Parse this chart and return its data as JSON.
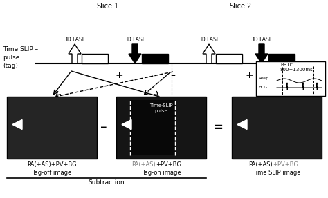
{
  "slice1_label": "Slice·1",
  "slice2_label": "Slice·2",
  "timeslip_label": "Time·SLIP –\npulse\n(tag)",
  "bbti_label": "BBTI:\n800~1300ms",
  "resp_label": "Resp",
  "ecg_label": "ECG",
  "fase_label": "3D·FASE",
  "image1_label1_black": "PA(+AS)+PV+BG",
  "image1_label2": "Tag-off image",
  "image2_label1_gray": "PA(+AS)",
  "image2_label1_black": "+PV+BG",
  "image2_label2": "Tag-on image",
  "image3_label1_black": "PA(+AS)",
  "image3_label1_gray": "+PV+BG",
  "image3_label2": "Time·SLIP image",
  "subtraction_label": "Subtraction",
  "timeslip_pulse_label": "Time·SLIP\npulse",
  "minus_op": "–",
  "equals_op": "=",
  "plus_op": "+"
}
